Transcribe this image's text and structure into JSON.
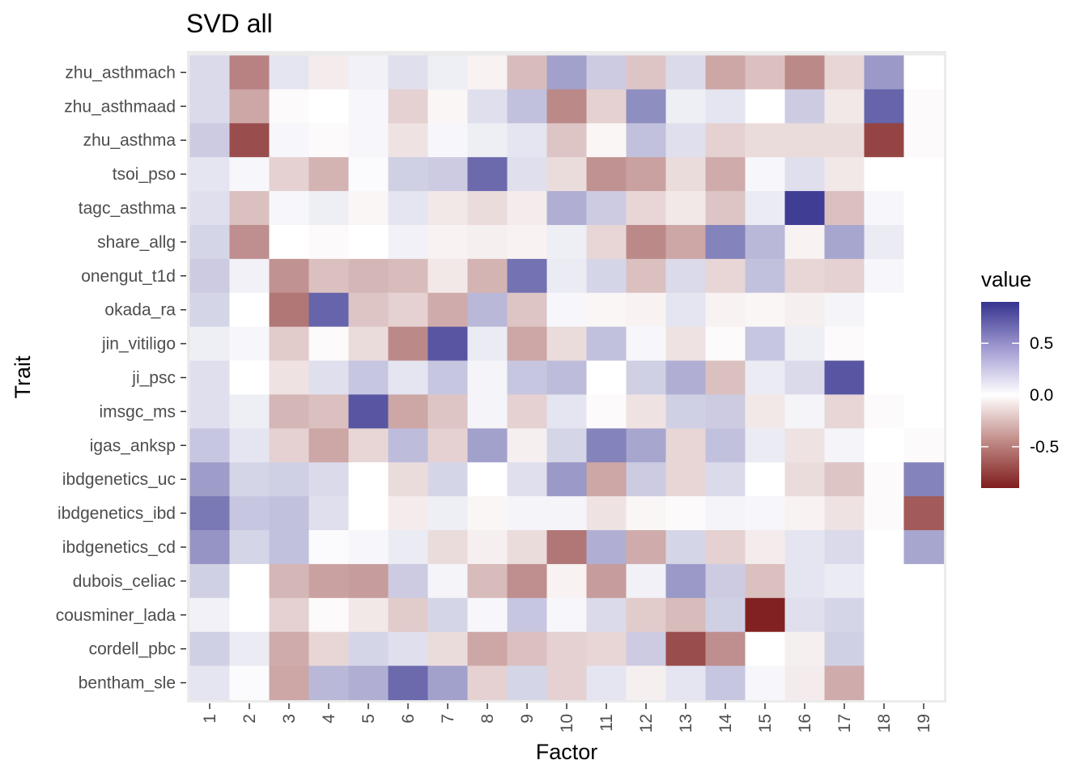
{
  "chart_data": {
    "type": "heatmap",
    "title": "SVD all",
    "xlabel": "Factor",
    "ylabel": "Trait",
    "x": [
      "1",
      "2",
      "3",
      "4",
      "5",
      "6",
      "7",
      "8",
      "9",
      "10",
      "11",
      "12",
      "13",
      "14",
      "15",
      "16",
      "17",
      "18",
      "19"
    ],
    "y": [
      "zhu_asthmach",
      "zhu_asthmaad",
      "zhu_asthma",
      "tsoi_pso",
      "tagc_asthma",
      "share_allg",
      "onengut_t1d",
      "okada_ra",
      "jin_vitiligo",
      "ji_psc",
      "imsgc_ms",
      "igas_anksp",
      "ibdgenetics_uc",
      "ibdgenetics_ibd",
      "ibdgenetics_cd",
      "dubois_celiac",
      "cousminer_lada",
      "cordell_pbc",
      "bentham_sle"
    ],
    "values": [
      [
        0.12,
        -0.45,
        0.08,
        -0.05,
        0.04,
        0.1,
        0.05,
        -0.03,
        -0.22,
        0.36,
        0.18,
        -0.18,
        0.12,
        -0.3,
        -0.2,
        -0.42,
        -0.12,
        0.4,
        0.0
      ],
      [
        0.12,
        -0.3,
        -0.01,
        0.0,
        0.02,
        -0.14,
        -0.02,
        0.1,
        0.22,
        -0.42,
        -0.14,
        0.45,
        0.05,
        0.08,
        0.0,
        0.18,
        -0.06,
        0.65,
        -0.01
      ],
      [
        0.18,
        -0.68,
        0.02,
        -0.01,
        0.02,
        -0.08,
        0.02,
        0.05,
        0.08,
        -0.18,
        -0.02,
        0.22,
        0.1,
        -0.14,
        -0.1,
        -0.1,
        -0.1,
        -0.72,
        -0.01
      ],
      [
        0.08,
        0.02,
        -0.14,
        -0.25,
        0.01,
        0.16,
        0.18,
        0.62,
        0.1,
        -0.1,
        -0.38,
        -0.32,
        -0.1,
        -0.28,
        0.02,
        0.1,
        -0.06,
        0.0,
        0.0
      ],
      [
        0.1,
        -0.2,
        0.02,
        0.05,
        -0.02,
        0.08,
        -0.06,
        -0.1,
        -0.05,
        0.3,
        0.18,
        -0.12,
        -0.06,
        -0.18,
        0.06,
        0.85,
        -0.2,
        0.02,
        0.0
      ],
      [
        0.14,
        -0.4,
        0.0,
        -0.01,
        0.0,
        0.04,
        -0.03,
        -0.04,
        -0.03,
        0.05,
        -0.12,
        -0.42,
        -0.3,
        0.5,
        0.26,
        -0.03,
        0.34,
        0.06,
        0.0
      ],
      [
        0.18,
        0.04,
        -0.38,
        -0.2,
        -0.24,
        -0.22,
        -0.06,
        -0.25,
        0.58,
        0.06,
        0.14,
        -0.2,
        0.12,
        -0.12,
        0.22,
        -0.12,
        -0.14,
        0.02,
        0.0
      ],
      [
        0.14,
        0.0,
        -0.5,
        0.65,
        -0.18,
        -0.14,
        -0.28,
        0.26,
        -0.18,
        0.02,
        -0.02,
        -0.03,
        0.08,
        -0.03,
        -0.02,
        -0.04,
        0.03,
        0.0,
        0.0
      ],
      [
        0.05,
        0.02,
        -0.16,
        -0.01,
        -0.1,
        -0.42,
        0.72,
        0.06,
        -0.3,
        -0.1,
        0.22,
        0.02,
        -0.08,
        -0.01,
        0.2,
        0.05,
        -0.01,
        0.0,
        0.0
      ],
      [
        0.1,
        0.0,
        -0.08,
        0.1,
        0.2,
        0.08,
        0.2,
        0.03,
        0.2,
        0.24,
        0.0,
        0.16,
        0.3,
        -0.2,
        0.06,
        0.12,
        0.72,
        0.0,
        0.0
      ],
      [
        0.1,
        0.05,
        -0.24,
        -0.2,
        0.72,
        -0.3,
        -0.18,
        0.03,
        -0.14,
        0.08,
        -0.01,
        -0.08,
        0.16,
        0.18,
        -0.06,
        0.03,
        -0.12,
        -0.01,
        0.0
      ],
      [
        0.2,
        0.08,
        -0.14,
        -0.3,
        -0.12,
        0.24,
        -0.14,
        0.36,
        -0.04,
        0.14,
        0.5,
        0.34,
        -0.12,
        0.22,
        0.06,
        -0.08,
        0.03,
        0.0,
        -0.01
      ],
      [
        0.38,
        0.14,
        0.16,
        0.12,
        0.0,
        -0.1,
        0.14,
        0.0,
        0.1,
        0.4,
        -0.3,
        0.18,
        -0.12,
        0.12,
        0.0,
        -0.1,
        -0.18,
        -0.01,
        0.5
      ],
      [
        0.55,
        0.2,
        0.22,
        0.1,
        0.0,
        -0.05,
        0.05,
        -0.02,
        0.03,
        0.03,
        -0.08,
        -0.02,
        -0.01,
        0.03,
        0.02,
        -0.03,
        -0.08,
        -0.01,
        -0.62
      ],
      [
        0.42,
        0.14,
        0.22,
        0.01,
        0.02,
        0.06,
        -0.1,
        -0.04,
        -0.1,
        -0.5,
        0.3,
        -0.28,
        0.14,
        -0.14,
        -0.05,
        0.08,
        0.12,
        0.0,
        0.34
      ],
      [
        0.16,
        0.0,
        -0.24,
        -0.32,
        -0.34,
        0.18,
        0.03,
        -0.22,
        -0.4,
        -0.03,
        -0.34,
        0.04,
        0.4,
        0.18,
        -0.2,
        0.08,
        0.06,
        0.0,
        0.0
      ],
      [
        0.04,
        0.0,
        -0.14,
        -0.01,
        -0.06,
        -0.16,
        0.14,
        0.02,
        0.2,
        0.02,
        0.12,
        -0.16,
        -0.22,
        0.16,
        -0.88,
        0.1,
        0.14,
        0.0,
        0.0
      ],
      [
        0.16,
        0.06,
        -0.28,
        -0.12,
        0.14,
        0.1,
        -0.1,
        -0.3,
        -0.2,
        -0.14,
        -0.12,
        0.18,
        -0.68,
        -0.4,
        0.0,
        -0.04,
        0.16,
        0.0,
        0.0
      ],
      [
        0.08,
        0.01,
        -0.3,
        0.26,
        0.3,
        0.62,
        0.36,
        -0.14,
        0.14,
        -0.14,
        0.08,
        -0.04,
        0.08,
        0.2,
        0.02,
        -0.05,
        -0.28,
        0.0,
        0.0
      ]
    ],
    "color_scale": {
      "low": "#7f1d1d",
      "mid": "#ffffff",
      "high": "#35338f",
      "limits": [
        -0.9,
        0.9
      ]
    },
    "legend": {
      "title": "value",
      "position": "right",
      "ticks": [
        {
          "value": 0.5,
          "label": "0.5"
        },
        {
          "value": 0.0,
          "label": "0.0"
        },
        {
          "value": -0.5,
          "label": "-0.5"
        }
      ]
    },
    "panel_background": "#ebebeb",
    "grid": true
  }
}
